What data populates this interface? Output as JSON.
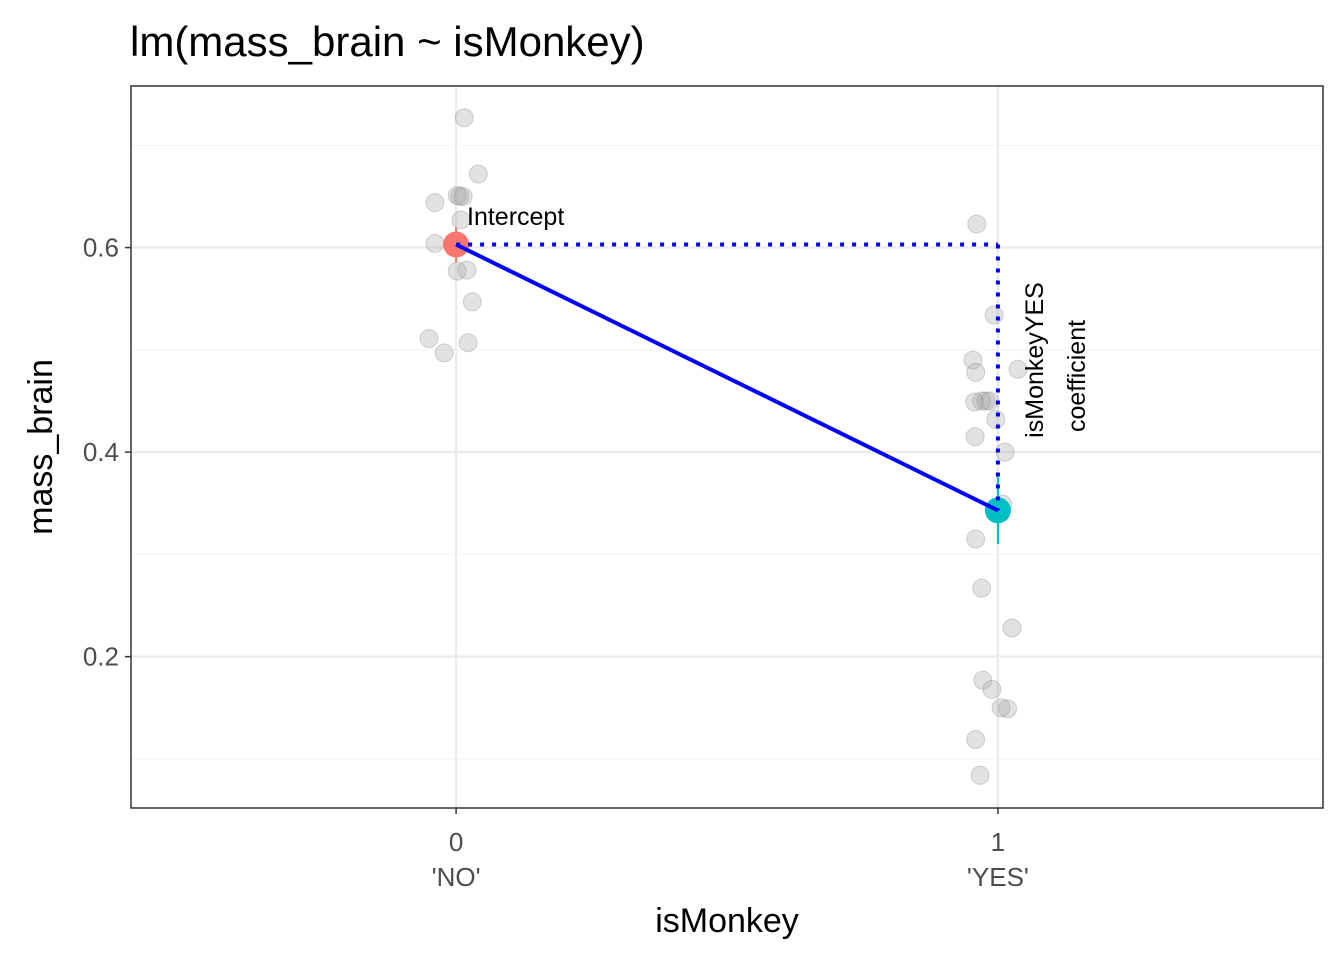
{
  "chart_data": {
    "type": "scatter",
    "title": "lm(mass_brain ~ isMonkey)",
    "xlabel": "isMonkey",
    "ylabel": "mass_brain",
    "xlim": [
      -0.6,
      1.6
    ],
    "ylim": [
      0.052,
      0.758
    ],
    "grid": true,
    "x_ticks": [
      {
        "value": 0,
        "label": "0",
        "sublabel": "'NO'"
      },
      {
        "value": 1,
        "label": "1",
        "sublabel": "'YES'"
      }
    ],
    "y_ticks": [
      {
        "value": 0.2,
        "label": "0.2"
      },
      {
        "value": 0.4,
        "label": "0.4"
      },
      {
        "value": 0.6,
        "label": "0.6"
      }
    ],
    "y_minor": [
      0.1,
      0.3,
      0.5,
      0.7
    ],
    "points": [
      [
        0.015,
        0.727
      ],
      [
        0.041,
        0.672
      ],
      [
        -0.039,
        0.644
      ],
      [
        0.002,
        0.651
      ],
      [
        0.007,
        0.65
      ],
      [
        0.013,
        0.65
      ],
      [
        0.009,
        0.627
      ],
      [
        -0.039,
        0.604
      ],
      [
        0.002,
        0.577
      ],
      [
        0.02,
        0.578
      ],
      [
        0.03,
        0.547
      ],
      [
        -0.05,
        0.511
      ],
      [
        -0.022,
        0.497
      ],
      [
        0.022,
        0.507
      ],
      [
        0.961,
        0.623
      ],
      [
        0.993,
        0.534
      ],
      [
        0.954,
        0.49
      ],
      [
        0.959,
        0.478
      ],
      [
        1.037,
        0.481
      ],
      [
        0.957,
        0.449
      ],
      [
        0.97,
        0.45
      ],
      [
        0.978,
        0.45
      ],
      [
        0.985,
        0.45
      ],
      [
        0.996,
        0.432
      ],
      [
        0.958,
        0.415
      ],
      [
        1.013,
        0.4
      ],
      [
        1.009,
        0.349
      ],
      [
        0.959,
        0.315
      ],
      [
        0.97,
        0.267
      ],
      [
        1.026,
        0.228
      ],
      [
        0.972,
        0.177
      ],
      [
        0.989,
        0.168
      ],
      [
        1.006,
        0.15
      ],
      [
        1.018,
        0.149
      ],
      [
        0.959,
        0.119
      ],
      [
        0.967,
        0.084
      ]
    ],
    "group_means": [
      {
        "x": 0,
        "y": 0.603,
        "se": 0.017,
        "color": "#F8766D"
      },
      {
        "x": 1,
        "y": 0.343,
        "se": 0.033,
        "color": "#00BFC4"
      }
    ],
    "fit_line_color": "#0000FF",
    "annotations": {
      "intercept": "Intercept",
      "coef_line1": "isMonkeyYES",
      "coef_line2": "coefficient"
    }
  }
}
